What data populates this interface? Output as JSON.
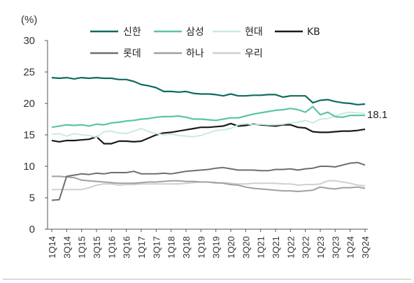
{
  "chart_data": {
    "type": "line",
    "unit_label": "(%)",
    "ylim": [
      0,
      30
    ],
    "yticks": [
      0,
      5,
      10,
      15,
      20,
      25,
      30
    ],
    "x": [
      "1Q14",
      "2Q14",
      "3Q14",
      "4Q14",
      "1Q15",
      "2Q15",
      "3Q15",
      "4Q15",
      "1Q16",
      "2Q16",
      "3Q16",
      "4Q16",
      "1Q17",
      "2Q17",
      "3Q17",
      "4Q17",
      "1Q18",
      "2Q18",
      "3Q18",
      "4Q18",
      "1Q19",
      "2Q19",
      "3Q19",
      "4Q19",
      "1Q20",
      "2Q20",
      "3Q20",
      "4Q20",
      "1Q21",
      "2Q21",
      "3Q21",
      "4Q21",
      "1Q22",
      "2Q22",
      "3Q22",
      "4Q22",
      "1Q23",
      "2Q23",
      "3Q23",
      "4Q23",
      "1Q24",
      "2Q24",
      "3Q24"
    ],
    "x_tick_labels": [
      "1Q14",
      "3Q14",
      "1Q15",
      "3Q15",
      "1Q16",
      "3Q16",
      "1Q17",
      "3Q17",
      "1Q18",
      "3Q18",
      "1Q19",
      "3Q19",
      "1Q20",
      "3Q20",
      "1Q21",
      "3Q21",
      "1Q22",
      "3Q22",
      "1Q23",
      "3Q23",
      "1Q24",
      "3Q24"
    ],
    "series": [
      {
        "name": "신한",
        "color": "#0e6b5c",
        "width": 2.2,
        "values": [
          24.1,
          24.0,
          24.1,
          23.9,
          24.1,
          24.0,
          24.1,
          24.0,
          24.0,
          23.8,
          23.8,
          23.5,
          23.0,
          22.8,
          22.5,
          21.9,
          21.9,
          21.8,
          21.9,
          21.6,
          21.5,
          21.5,
          21.4,
          21.2,
          21.5,
          21.2,
          21.2,
          21.3,
          21.3,
          21.4,
          21.4,
          21.0,
          21.2,
          21.2,
          21.2,
          20.1,
          20.5,
          20.6,
          20.3,
          20.1,
          20.0,
          19.8,
          19.9
        ]
      },
      {
        "name": "삼성",
        "color": "#5cc4a6",
        "width": 2.2,
        "values": [
          16.2,
          16.4,
          16.6,
          16.5,
          16.6,
          16.4,
          16.7,
          16.6,
          16.9,
          17.0,
          17.2,
          17.3,
          17.5,
          17.6,
          17.8,
          17.9,
          17.9,
          18.0,
          17.8,
          17.5,
          17.5,
          17.4,
          17.3,
          17.5,
          17.7,
          17.7,
          18.0,
          18.3,
          18.5,
          18.7,
          18.9,
          19.0,
          19.2,
          19.0,
          18.6,
          19.5,
          18.2,
          18.6,
          17.9,
          17.8,
          18.1,
          18.1,
          18.1
        ]
      },
      {
        "name": "현대",
        "color": "#c8ebdf",
        "width": 2.0,
        "values": [
          15.1,
          15.2,
          14.8,
          15.2,
          15.0,
          14.9,
          14.6,
          15.5,
          15.6,
          15.3,
          15.2,
          15.6,
          16.0,
          15.5,
          15.2,
          15.0,
          15.1,
          14.9,
          14.8,
          14.7,
          14.9,
          15.3,
          15.7,
          15.8,
          16.0,
          16.6,
          16.8,
          16.6,
          16.7,
          16.6,
          16.6,
          16.7,
          16.9,
          17.0,
          17.3,
          16.9,
          17.5,
          17.6,
          18.0,
          18.4,
          18.6,
          18.5,
          18.4
        ]
      },
      {
        "name": "KB",
        "color": "#1a1a1a",
        "width": 2.2,
        "values": [
          14.1,
          13.9,
          14.1,
          14.1,
          14.2,
          14.3,
          14.7,
          13.6,
          13.6,
          14.0,
          14.0,
          13.9,
          14.0,
          14.5,
          15.0,
          15.3,
          15.4,
          15.6,
          15.8,
          16.0,
          16.2,
          16.2,
          16.3,
          16.4,
          16.8,
          16.4,
          16.5,
          16.7,
          16.6,
          16.5,
          16.4,
          16.6,
          16.6,
          16.2,
          16.1,
          15.5,
          15.4,
          15.4,
          15.5,
          15.6,
          15.6,
          15.7,
          15.9
        ]
      },
      {
        "name": "롯데",
        "color": "#6e6e6e",
        "width": 2.0,
        "values": [
          4.6,
          4.7,
          8.4,
          8.6,
          8.8,
          8.7,
          8.9,
          8.8,
          9.0,
          9.0,
          9.0,
          9.2,
          8.8,
          8.8,
          8.8,
          8.9,
          8.8,
          9.0,
          9.2,
          9.3,
          9.4,
          9.5,
          9.7,
          9.8,
          9.6,
          9.4,
          9.4,
          9.4,
          9.3,
          9.3,
          9.5,
          9.5,
          9.6,
          9.4,
          9.6,
          9.7,
          10.0,
          10.0,
          9.9,
          10.2,
          10.5,
          10.6,
          10.2
        ]
      },
      {
        "name": "하나",
        "color": "#a0a0a0",
        "width": 2.0,
        "values": [
          8.4,
          8.4,
          8.3,
          8.2,
          7.8,
          7.7,
          7.6,
          7.5,
          7.4,
          7.3,
          7.3,
          7.3,
          7.4,
          7.5,
          7.5,
          7.6,
          7.7,
          7.7,
          7.6,
          7.6,
          7.5,
          7.5,
          7.4,
          7.3,
          7.1,
          7.0,
          6.7,
          6.5,
          6.4,
          6.3,
          6.2,
          6.1,
          6.1,
          6.0,
          6.1,
          6.2,
          6.7,
          6.5,
          6.4,
          6.6,
          6.6,
          6.7,
          6.5
        ]
      },
      {
        "name": "우리",
        "color": "#cfcfcf",
        "width": 2.0,
        "values": [
          6.3,
          6.3,
          6.3,
          6.3,
          6.3,
          6.6,
          7.0,
          7.2,
          7.2,
          7.0,
          7.1,
          7.1,
          7.2,
          7.2,
          7.2,
          7.2,
          7.2,
          7.2,
          7.3,
          7.4,
          7.5,
          7.5,
          7.3,
          7.4,
          7.3,
          7.2,
          7.2,
          7.3,
          7.3,
          7.3,
          7.3,
          7.2,
          7.2,
          7.0,
          7.1,
          7.1,
          7.2,
          7.7,
          7.7,
          7.5,
          7.3,
          7.0,
          6.9
        ]
      }
    ],
    "annotation": {
      "text": "18.1",
      "series": "삼성"
    },
    "legend": {
      "placement": "top",
      "rows": [
        [
          "신한",
          "삼성",
          "현대",
          "KB"
        ],
        [
          "롯데",
          "하나",
          "우리"
        ]
      ]
    },
    "grid": false
  }
}
